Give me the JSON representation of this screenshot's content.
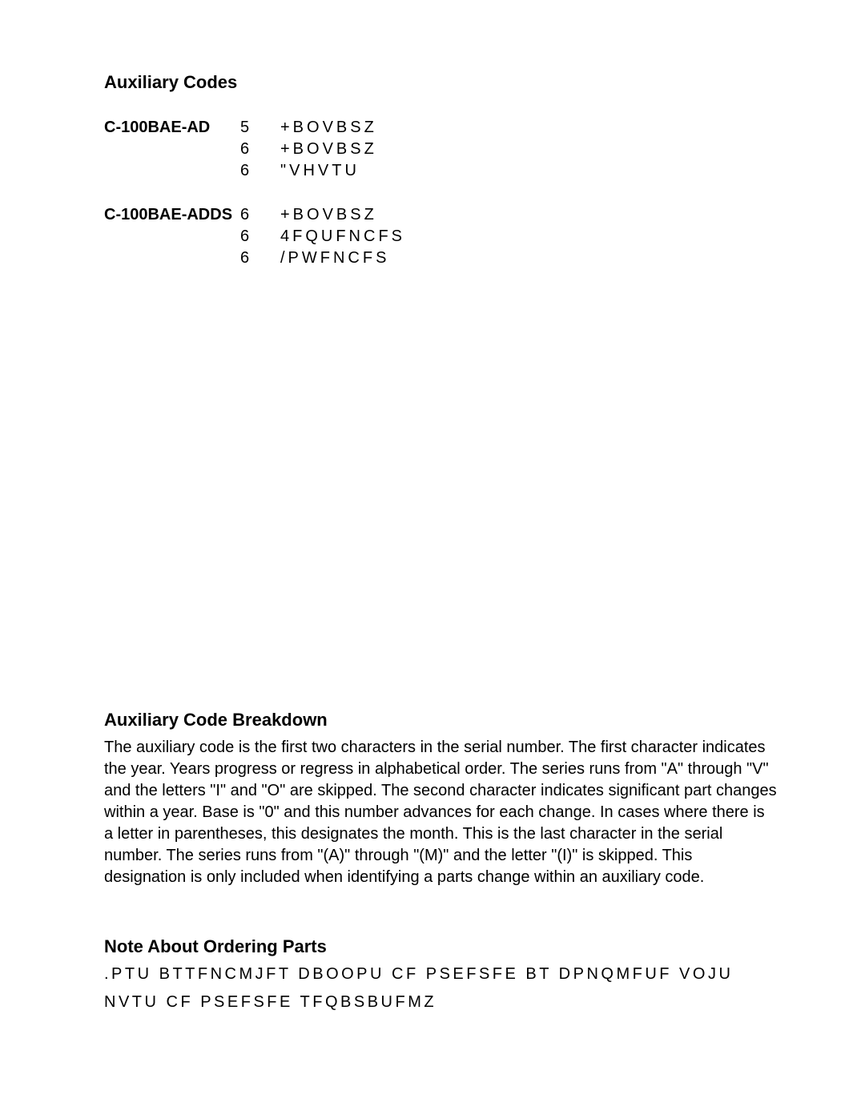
{
  "headings": {
    "auxiliary_codes": "Auxiliary Codes",
    "breakdown": "Auxiliary Code Breakdown",
    "note": "Note About Ordering Parts"
  },
  "codes": [
    {
      "label": "C-100BAE-AD",
      "rows": [
        {
          "num": "5",
          "text": "+BOVBSZ"
        },
        {
          "num": "6",
          "text": "+BOVBSZ"
        },
        {
          "num": "6",
          "text": "\"VHVTU"
        }
      ]
    },
    {
      "label": "C-100BAE-ADDS",
      "rows": [
        {
          "num": "6",
          "text": "+BOVBSZ"
        },
        {
          "num": "6",
          "text": "4FQUFNCFS"
        },
        {
          "num": "6",
          "text": "/PWFNCFS"
        }
      ]
    }
  ],
  "breakdown_text": "The auxiliary code is the first two characters in the serial number. The first character indicates the year. Years progress or regress in alphabetical order. The series runs from \"A\" through \"V\" and the letters \"I\" and \"O\" are skipped. The second character indicates significant part changes within a year. Base is \"0\" and this number advances for each change. In cases where there is a letter in parentheses, this designates the month. This is the last character in the serial number. The series runs from \"(A)\" through \"(M)\" and the letter \"(I)\" is skipped. This designation is only included when identifying a parts change within an auxiliary code.",
  "note_line1": ".PTU BTTFNCMJFT DBOOPU CF PSEFSFE BT DPNQMFUF VOJU",
  "note_line2": "NVTU CF PSEFSFE TFQBSBUFMZ"
}
